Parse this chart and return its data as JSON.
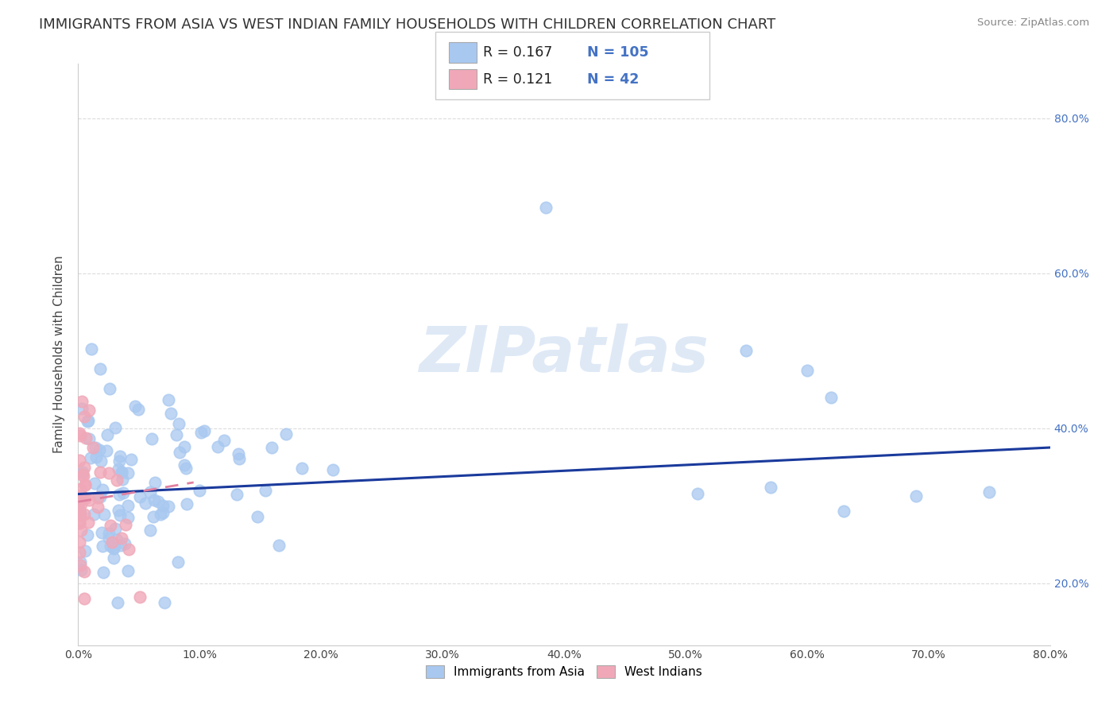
{
  "title": "IMMIGRANTS FROM ASIA VS WEST INDIAN FAMILY HOUSEHOLDS WITH CHILDREN CORRELATION CHART",
  "source": "Source: ZipAtlas.com",
  "ylabel": "Family Households with Children",
  "legend_label1": "Immigrants from Asia",
  "legend_label2": "West Indians",
  "R1": 0.167,
  "N1": 105,
  "R2": 0.121,
  "N2": 42,
  "color1": "#a8c8f0",
  "color2": "#f0a8b8",
  "trendline1_color": "#1a3a9c",
  "trendline2_color": "#e080a0",
  "xlim": [
    0.0,
    0.8
  ],
  "ylim": [
    0.12,
    0.87
  ],
  "xtick_vals": [
    0.0,
    0.1,
    0.2,
    0.3,
    0.4,
    0.5,
    0.6,
    0.7,
    0.8
  ],
  "ytick_vals": [
    0.2,
    0.4,
    0.6,
    0.8
  ],
  "background_color": "#ffffff",
  "grid_color": "#d8d8d8",
  "title_fontsize": 13,
  "tick_fontsize": 10,
  "ylabel_fontsize": 11,
  "watermark_text": "ZIPatlas",
  "watermark_fontsize": 58,
  "watermark_color": "#c5d8f0",
  "trendline1_start_y": 0.315,
  "trendline1_end_y": 0.375,
  "trendline2_start_y": 0.305,
  "trendline2_end_y": 0.33,
  "trendline2_end_x": 0.095
}
